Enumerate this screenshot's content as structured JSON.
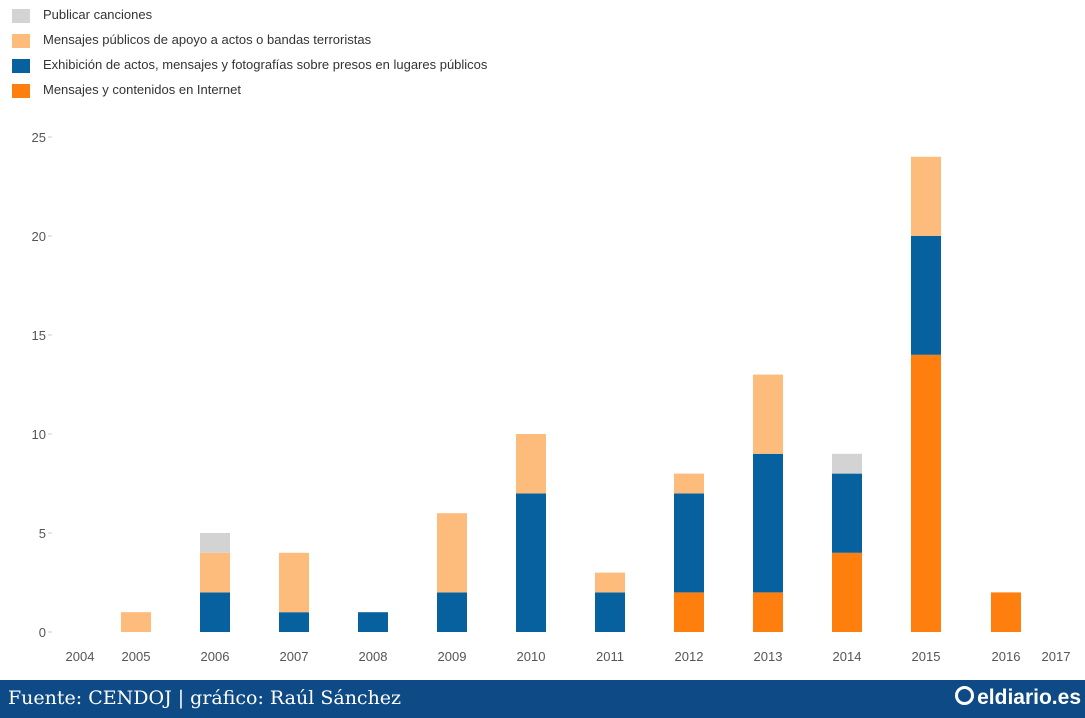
{
  "chart_data": {
    "type": "bar",
    "stacked": true,
    "title": "",
    "xlabel": "",
    "ylabel": "",
    "ylim": [
      0,
      25
    ],
    "y_ticks": [
      0,
      5,
      10,
      15,
      20,
      25
    ],
    "grid": false,
    "legend_position": "top-left",
    "categories": [
      "2004",
      "2005",
      "2006",
      "2007",
      "2008",
      "2009",
      "2010",
      "2011",
      "2012",
      "2013",
      "2014",
      "2015",
      "2016",
      "2017"
    ],
    "series": [
      {
        "name": "Mensajes y contenidos en Internet",
        "color": "#ff7f0e",
        "values": [
          0,
          0,
          0,
          0,
          0,
          0,
          0,
          0,
          2,
          2,
          4,
          14,
          2,
          0
        ]
      },
      {
        "name": "Exhibición de actos, mensajes y fotografías sobre presos en lugares públicos",
        "color": "#08619f",
        "values": [
          0,
          0,
          2,
          1,
          1,
          2,
          7,
          2,
          5,
          7,
          4,
          6,
          0,
          0
        ]
      },
      {
        "name": "Mensajes públicos de apoyo a actos o bandas terroristas",
        "color": "#fdbb7c",
        "values": [
          0,
          1,
          2,
          3,
          0,
          4,
          3,
          1,
          1,
          4,
          0,
          4,
          0,
          0
        ]
      },
      {
        "name": "Publicar canciones",
        "color": "#d3d3d3",
        "values": [
          0,
          0,
          1,
          0,
          0,
          0,
          0,
          0,
          0,
          0,
          1,
          0,
          0,
          0
        ]
      }
    ]
  },
  "legend": [
    {
      "label": "Publicar canciones",
      "color": "#d3d3d3"
    },
    {
      "label": "Mensajes públicos de apoyo a actos o bandas terroristas",
      "color": "#fdbb7c"
    },
    {
      "label": "Exhibición de actos, mensajes y fotografías sobre presos en lugares públicos",
      "color": "#08619f"
    },
    {
      "label": "Mensajes y contenidos en Internet",
      "color": "#ff7f0e"
    }
  ],
  "footer": {
    "credit": "Fuente: CENDOJ | gráfico: Raúl Sánchez",
    "logo": "eldiario.es",
    "background": "#0e4a85"
  }
}
